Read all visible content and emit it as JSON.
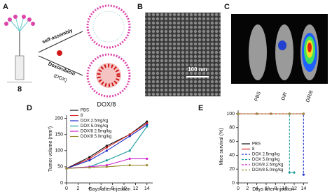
{
  "panels": {
    "a": {
      "label": "A",
      "compound": "8",
      "arrow_top": "self-assembly",
      "arrow_bottom": "Doxorubicin",
      "arrow_bottom_sub": "(DOX)",
      "product": "DOX/8"
    },
    "b": {
      "label": "B",
      "scale_bar": "100 nm"
    },
    "c": {
      "label": "C",
      "mice": [
        "PBS",
        "DiR",
        "DiR/8"
      ]
    }
  },
  "chart_data": [
    {
      "type": "line",
      "label": "D",
      "xlabel": "Days after injection",
      "ylabel": "Tumor volume (mm³)",
      "xlim": [
        0,
        15
      ],
      "xticks": [
        0,
        2,
        4,
        6,
        8,
        10,
        12,
        14
      ],
      "ylim": [
        0,
        210
      ],
      "yticks": [
        0,
        50,
        100,
        150,
        200
      ],
      "series": [
        {
          "name": "PBS",
          "color": "#111111",
          "dash": false,
          "x": [
            0,
            4,
            7,
            11,
            14
          ],
          "values": [
            45,
            80,
            115,
            150,
            190
          ]
        },
        {
          "name": "8",
          "color": "#d62020",
          "dash": false,
          "x": [
            0,
            4,
            7,
            11,
            14
          ],
          "values": [
            45,
            75,
            110,
            150,
            185
          ]
        },
        {
          "name": "DOX 2.5mg/kg",
          "color": "#2030c8",
          "dash": false,
          "x": [
            0,
            4,
            7,
            11,
            14
          ],
          "values": [
            45,
            70,
            100,
            145,
            180
          ]
        },
        {
          "name": "DOX 5.0mg/kg",
          "color": "#1a9a9a",
          "dash": false,
          "x": [
            0,
            4,
            7,
            11,
            14
          ],
          "values": [
            45,
            50,
            70,
            100,
            175
          ]
        },
        {
          "name": "DOX/8 2.5mg/kg",
          "color": "#d020d0",
          "dash": false,
          "x": [
            0,
            4,
            7,
            11,
            14
          ],
          "values": [
            45,
            50,
            55,
            75,
            75
          ]
        },
        {
          "name": "DOX/8 5.0mg/kg",
          "color": "#9a8a30",
          "dash": false,
          "x": [
            0,
            4,
            7,
            11,
            14
          ],
          "values": [
            45,
            48,
            50,
            55,
            55
          ]
        }
      ]
    },
    {
      "type": "line",
      "label": "E",
      "xlabel": "Days after injection",
      "ylabel": "Mice survival (%)",
      "xlim": [
        0,
        15
      ],
      "xticks": [
        0,
        2,
        4,
        6,
        8,
        10,
        12,
        14
      ],
      "ylim": [
        0,
        105
      ],
      "yticks": [
        0,
        20,
        40,
        60,
        80,
        100
      ],
      "series": [
        {
          "name": "PBS",
          "color": "#111111",
          "dash": false,
          "x": [
            0,
            4,
            7,
            11,
            14
          ],
          "values": [
            100,
            100,
            100,
            100,
            100
          ]
        },
        {
          "name": "8",
          "color": "#d62020",
          "dash": false,
          "x": [
            0,
            4,
            7,
            11,
            14
          ],
          "values": [
            100,
            100,
            100,
            100,
            100
          ]
        },
        {
          "name": "DOX 2.5mg/kg",
          "color": "#2030c8",
          "dash": true,
          "x": [
            0,
            4,
            7,
            11,
            14,
            14
          ],
          "values": [
            100,
            100,
            100,
            100,
            100,
            12
          ]
        },
        {
          "name": "DOX 5.0mg/kg",
          "color": "#1a9a9a",
          "dash": true,
          "x": [
            0,
            4,
            7,
            11,
            11,
            12
          ],
          "values": [
            100,
            100,
            100,
            100,
            15,
            15
          ]
        },
        {
          "name": "DOX/8 2.5mg/kg",
          "color": "#d020d0",
          "dash": true,
          "x": [
            0,
            4,
            7,
            11,
            14
          ],
          "values": [
            100,
            100,
            100,
            100,
            100
          ]
        },
        {
          "name": "DOX/8 5.0mg/kg",
          "color": "#9a8a30",
          "dash": true,
          "x": [
            0,
            4,
            7,
            11,
            14
          ],
          "values": [
            100,
            100,
            100,
            100,
            100
          ]
        }
      ]
    }
  ]
}
